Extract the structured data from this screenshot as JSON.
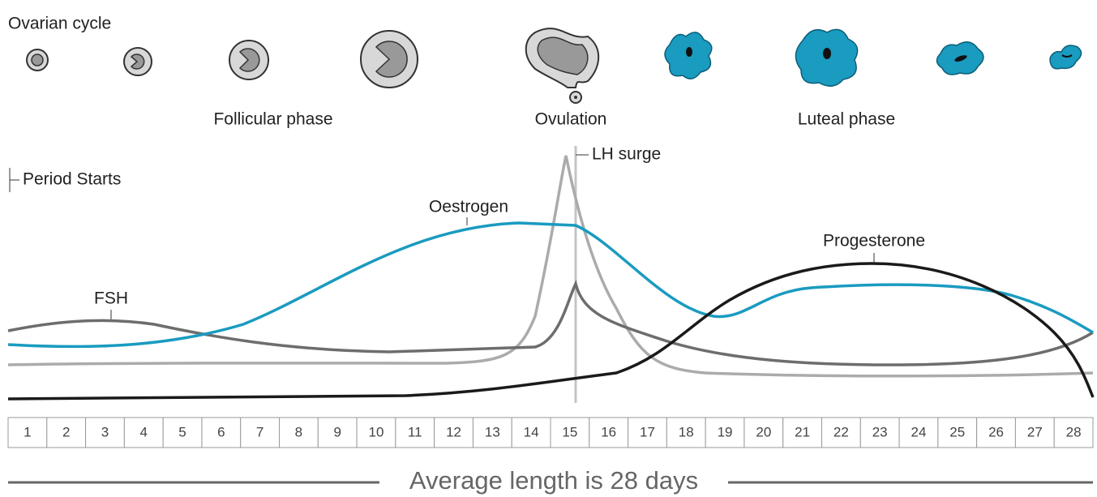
{
  "header": {
    "title": "Ovarian cycle"
  },
  "phases": {
    "follicular": "Follicular phase",
    "ovulation": "Ovulation",
    "luteal": "Luteal phase"
  },
  "labels": {
    "lh": "LH surge",
    "period": "Period Starts",
    "oestrogen": "Oestrogen",
    "progesterone": "Progesterone",
    "fsh": "FSH"
  },
  "days": [
    1,
    2,
    3,
    4,
    5,
    6,
    7,
    8,
    9,
    10,
    11,
    12,
    13,
    14,
    15,
    16,
    17,
    18,
    19,
    20,
    21,
    22,
    23,
    24,
    25,
    26,
    27,
    28
  ],
  "footer": "Average length is 28 days"
}
